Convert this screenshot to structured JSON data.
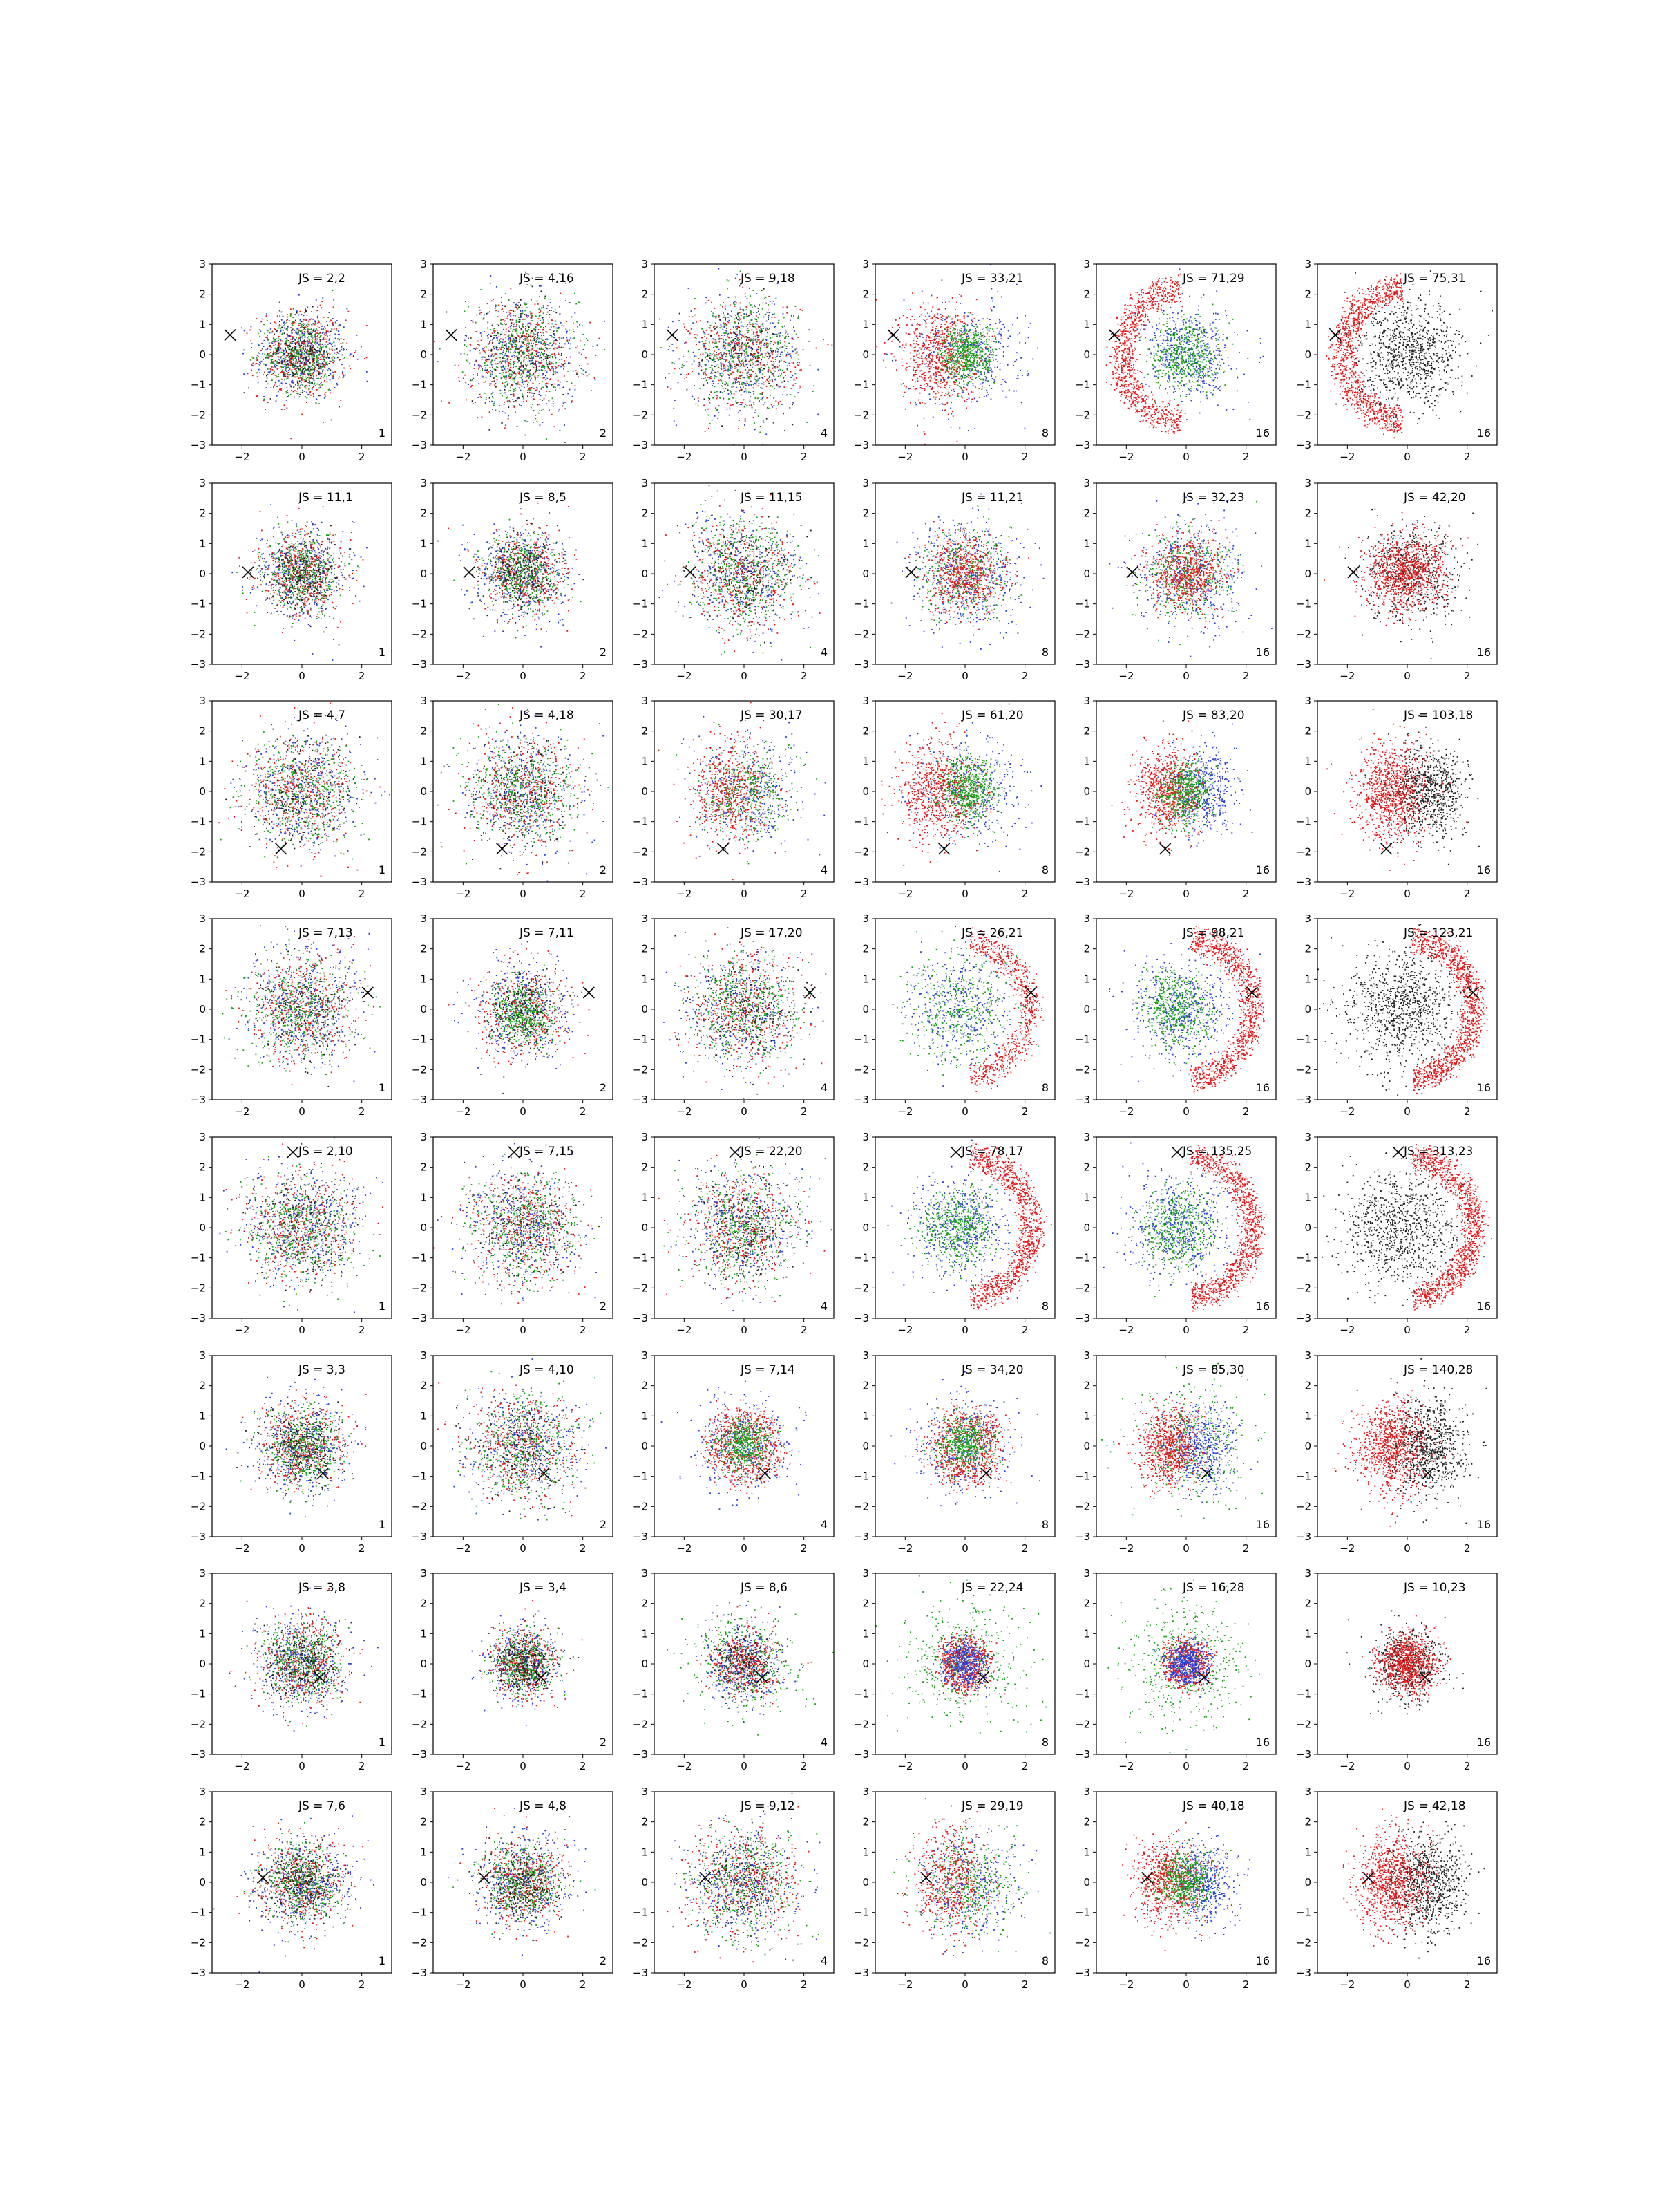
{
  "figure": {
    "layout": "8 rows x 6 columns of scatter subplots",
    "x_ticks": [
      "−2",
      "0",
      "2"
    ],
    "y_ticks": [
      "3",
      "2",
      "1",
      "0",
      "−1",
      "−2",
      "−3"
    ]
  },
  "colors": {
    "red": "#e41a1c",
    "green": "#1a9e1a",
    "blue": "#2b3fd6",
    "black": "#222222",
    "marker": "#000000"
  },
  "chart_data": {
    "type": "scatter",
    "xlim": [
      -3,
      3
    ],
    "ylim": [
      -3,
      3
    ],
    "grid": false,
    "marker_symbol": "x",
    "rows": [
      {
        "marker": [
          -2.4,
          0.65
        ],
        "cells": [
          {
            "label": "JS = 2,2",
            "bins": "1",
            "pattern": "mixed_small"
          },
          {
            "label": "JS = 4,16",
            "bins": "2",
            "pattern": "mixed_wide"
          },
          {
            "label": "JS = 9,18",
            "bins": "4",
            "pattern": "mixed_wide"
          },
          {
            "label": "JS = 33,21",
            "bins": "8",
            "pattern": "red_left_green_center"
          },
          {
            "label": "JS = 71,29",
            "bins": "16",
            "pattern": "red_arc_left_green_blue_center"
          },
          {
            "label": "JS = 75,31",
            "bins": "16",
            "pattern": "red_arc_left_black"
          }
        ]
      },
      {
        "marker": [
          -1.8,
          0.05
        ],
        "cells": [
          {
            "label": "JS = 11,1",
            "bins": "1",
            "pattern": "mixed_small"
          },
          {
            "label": "JS = 8,5",
            "bins": "2",
            "pattern": "mixed_small"
          },
          {
            "label": "JS = 11,15",
            "bins": "4",
            "pattern": "mixed_wide"
          },
          {
            "label": "JS = 11,21",
            "bins": "8",
            "pattern": "red_center_blue_ring"
          },
          {
            "label": "JS = 32,23",
            "bins": "16",
            "pattern": "red_center_blue_ring"
          },
          {
            "label": "JS = 42,20",
            "bins": "16",
            "pattern": "red_center_black"
          }
        ]
      },
      {
        "marker": [
          -0.7,
          -1.9
        ],
        "cells": [
          {
            "label": "JS = 4,7",
            "bins": "1",
            "pattern": "mixed_wide"
          },
          {
            "label": "JS = 4,18",
            "bins": "2",
            "pattern": "mixed_wide"
          },
          {
            "label": "JS = 30,17",
            "bins": "4",
            "pattern": "red_left_mixed"
          },
          {
            "label": "JS = 61,20",
            "bins": "8",
            "pattern": "red_left_green_center"
          },
          {
            "label": "JS = 83,20",
            "bins": "16",
            "pattern": "red_left_green_center_blue_right"
          },
          {
            "label": "JS = 103,18",
            "bins": "16",
            "pattern": "red_left_black_right"
          }
        ]
      },
      {
        "marker": [
          2.2,
          0.55
        ],
        "cells": [
          {
            "label": "JS = 7,13",
            "bins": "1",
            "pattern": "mixed_wide"
          },
          {
            "label": "JS = 7,11",
            "bins": "2",
            "pattern": "green_center_mixed"
          },
          {
            "label": "JS = 17,20",
            "bins": "4",
            "pattern": "mixed_wide"
          },
          {
            "label": "JS = 26,21",
            "bins": "8",
            "pattern": "red_arc_right_mixed"
          },
          {
            "label": "JS = 98,21",
            "bins": "16",
            "pattern": "red_arc_right_green_blue_center"
          },
          {
            "label": "JS = 123,21",
            "bins": "16",
            "pattern": "red_arc_right_black"
          }
        ]
      },
      {
        "marker": [
          -0.3,
          2.5
        ],
        "cells": [
          {
            "label": "JS = 2,10",
            "bins": "1",
            "pattern": "mixed_wide"
          },
          {
            "label": "JS = 7,15",
            "bins": "2",
            "pattern": "mixed_wide"
          },
          {
            "label": "JS = 22,20",
            "bins": "4",
            "pattern": "mixed_wide"
          },
          {
            "label": "JS = 78,17",
            "bins": "8",
            "pattern": "red_arc_right_green_blue_center"
          },
          {
            "label": "JS = 135,25",
            "bins": "16",
            "pattern": "red_arc_right_green_blue_center"
          },
          {
            "label": "JS = 313,23",
            "bins": "16",
            "pattern": "red_arc_right_black"
          }
        ]
      },
      {
        "marker": [
          0.7,
          -0.9
        ],
        "cells": [
          {
            "label": "JS = 3,3",
            "bins": "1",
            "pattern": "mixed_small"
          },
          {
            "label": "JS = 4,10",
            "bins": "2",
            "pattern": "mixed_wide"
          },
          {
            "label": "JS = 7,14",
            "bins": "4",
            "pattern": "red_ring_green_center"
          },
          {
            "label": "JS = 34,20",
            "bins": "8",
            "pattern": "red_ring_green_center"
          },
          {
            "label": "JS = 85,30",
            "bins": "16",
            "pattern": "red_left_blue_right_green_outer"
          },
          {
            "label": "JS = 140,28",
            "bins": "16",
            "pattern": "red_left_black_right"
          }
        ]
      },
      {
        "marker": [
          0.6,
          -0.45
        ],
        "cells": [
          {
            "label": "JS = 3,8",
            "bins": "1",
            "pattern": "mixed_small"
          },
          {
            "label": "JS = 3,4",
            "bins": "2",
            "pattern": "mixed_tight"
          },
          {
            "label": "JS = 8,6",
            "bins": "4",
            "pattern": "mixed_tight_green_outer"
          },
          {
            "label": "JS = 22,24",
            "bins": "8",
            "pattern": "red_ring_blue_center_green_outer"
          },
          {
            "label": "JS = 16,28",
            "bins": "16",
            "pattern": "blue_center_red_ring_green_outer"
          },
          {
            "label": "JS = 10,23",
            "bins": "16",
            "pattern": "red_tight_black"
          }
        ]
      },
      {
        "marker": [
          -1.3,
          0.15
        ],
        "cells": [
          {
            "label": "JS = 7,6",
            "bins": "1",
            "pattern": "mixed_small"
          },
          {
            "label": "JS = 4,8",
            "bins": "2",
            "pattern": "mixed_small"
          },
          {
            "label": "JS = 9,12",
            "bins": "4",
            "pattern": "mixed_wide"
          },
          {
            "label": "JS = 29,19",
            "bins": "8",
            "pattern": "red_left_mixed"
          },
          {
            "label": "JS = 40,18",
            "bins": "16",
            "pattern": "red_left_green_center_blue_right"
          },
          {
            "label": "JS = 42,18",
            "bins": "16",
            "pattern": "red_left_black_right"
          }
        ]
      }
    ]
  }
}
